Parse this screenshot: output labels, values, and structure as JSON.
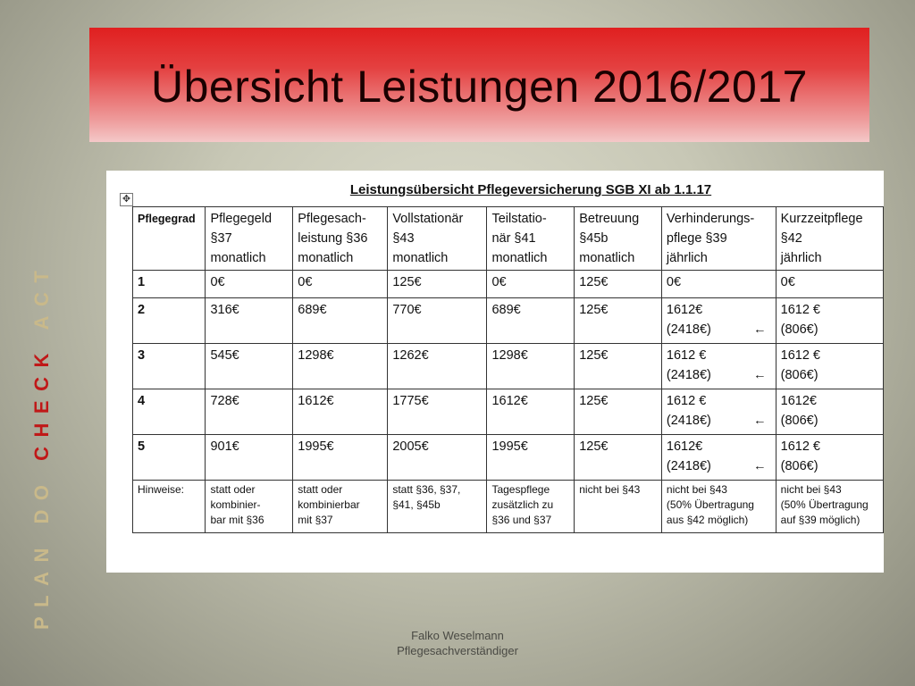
{
  "slide": {
    "title": "Übersicht Leistungen 2016/2017",
    "side_text_muted_1": "PLAN DO ",
    "side_text_accent": "CHECK",
    "side_text_muted_2": " ACT"
  },
  "document": {
    "heading": "Leistungsübersicht Pflegeversicherung SGB XI ab 1.1.17",
    "move_handle": "✥",
    "headers": [
      [
        "Pflegegrad"
      ],
      [
        "Pflegegeld",
        "§37",
        "monatlich"
      ],
      [
        "Pflegesach-",
        "leistung §36",
        "monatlich"
      ],
      [
        "Vollstationär",
        "§43",
        "monatlich"
      ],
      [
        "Teilstatio-",
        "när §41",
        "monatlich"
      ],
      [
        "Betreuung",
        "§45b",
        "monatlich"
      ],
      [
        "Verhinderungs-",
        "pflege §39",
        "jährlich"
      ],
      [
        "Kurzzeitpflege",
        "§42",
        "jährlich"
      ]
    ],
    "rows": [
      {
        "grade": "1",
        "cells": [
          [
            "0€"
          ],
          [
            "0€"
          ],
          [
            "125€"
          ],
          [
            "0€"
          ],
          [
            "125€"
          ],
          [
            "0€"
          ],
          [
            "0€"
          ]
        ]
      },
      {
        "grade": "2",
        "cells": [
          [
            "316€"
          ],
          [
            "689€"
          ],
          [
            "770€"
          ],
          [
            "689€"
          ],
          [
            "125€"
          ],
          [
            "1612€",
            "(2418€)"
          ],
          [
            "1612 €",
            "(806€)"
          ]
        ]
      },
      {
        "grade": "3",
        "cells": [
          [
            "545€"
          ],
          [
            "1298€"
          ],
          [
            "1262€"
          ],
          [
            "1298€"
          ],
          [
            "125€"
          ],
          [
            "1612 €",
            "(2418€)"
          ],
          [
            "1612 €",
            "(806€)"
          ]
        ]
      },
      {
        "grade": "4",
        "cells": [
          [
            "728€"
          ],
          [
            "1612€"
          ],
          [
            "1775€"
          ],
          [
            "1612€"
          ],
          [
            "125€"
          ],
          [
            "1612 €",
            "(2418€)"
          ],
          [
            "1612€",
            "(806€)"
          ]
        ]
      },
      {
        "grade": "5",
        "cells": [
          [
            "901€"
          ],
          [
            "1995€"
          ],
          [
            "2005€"
          ],
          [
            "1995€"
          ],
          [
            "125€"
          ],
          [
            "1612€",
            "(2418€)"
          ],
          [
            "1612 €",
            "(806€)"
          ]
        ]
      }
    ],
    "arrow_glyph": "←",
    "notes": {
      "label": "Hinweise:",
      "cells": [
        [
          "statt oder",
          "kombinier-",
          "bar mit §36"
        ],
        [
          "statt oder",
          "kombinierbar",
          "mit §37"
        ],
        [
          "statt §36, §37,",
          "§41, §45b"
        ],
        [
          "Tagespflege",
          "zusätzlich zu",
          "§36 und §37"
        ],
        [
          "nicht bei §43"
        ],
        [
          "nicht bei §43",
          "(50% Übertragung",
          "aus §42 möglich)"
        ],
        [
          "nicht bei §43",
          "(50% Übertragung",
          "auf §39 möglich)"
        ]
      ]
    }
  },
  "footer": {
    "name": "Falko Weselmann",
    "role": "Pflegesachverständiger"
  },
  "colors": {
    "title_red": "#e02020",
    "accent_red": "#c01818",
    "muted_gold": "#c9b98a"
  }
}
